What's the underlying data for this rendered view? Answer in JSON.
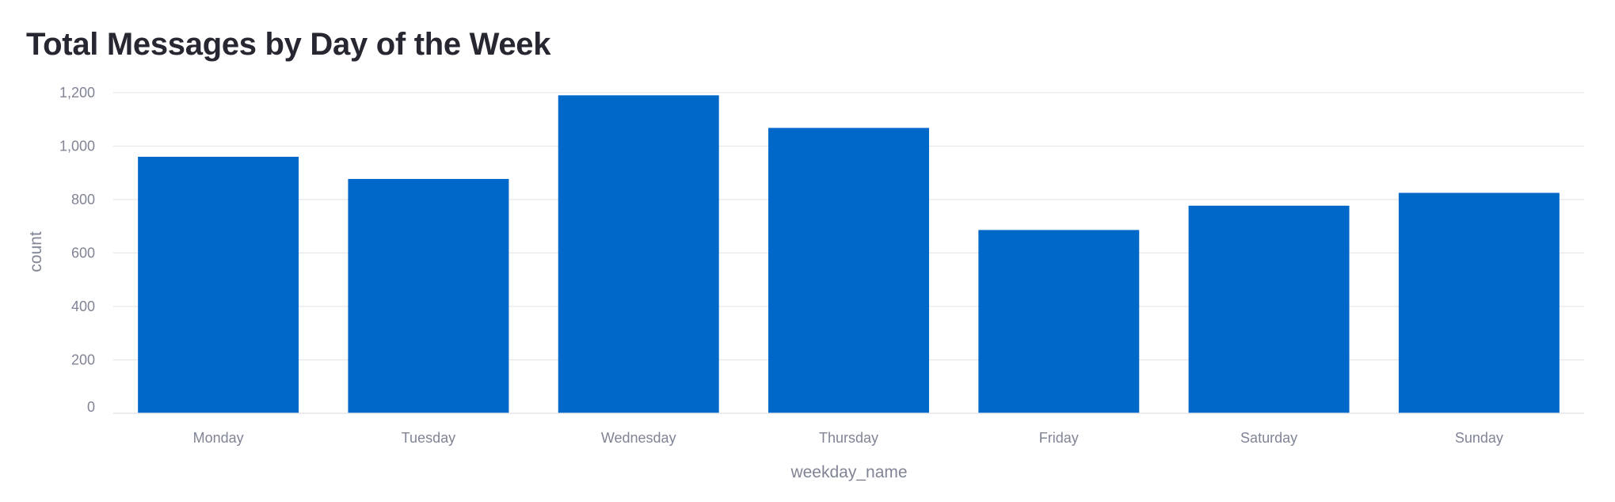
{
  "chart_data": {
    "type": "bar",
    "title": "Total Messages by Day of the Week",
    "xlabel": "weekday_name",
    "ylabel": "count",
    "categories": [
      "Monday",
      "Tuesday",
      "Wednesday",
      "Thursday",
      "Friday",
      "Saturday",
      "Sunday"
    ],
    "values": [
      960,
      877,
      1190,
      1068,
      686,
      777,
      825
    ],
    "ylim": [
      0,
      1200
    ],
    "yticks": [
      0,
      200,
      400,
      600,
      800,
      1000,
      1200
    ],
    "ytick_labels": [
      "0",
      "200",
      "400",
      "600",
      "800",
      "1,000",
      "1,200"
    ],
    "grid": true,
    "legend": "none",
    "bar_color": "#0068c9",
    "grid_color": "#e6e6eb",
    "text_color": "#808495"
  }
}
